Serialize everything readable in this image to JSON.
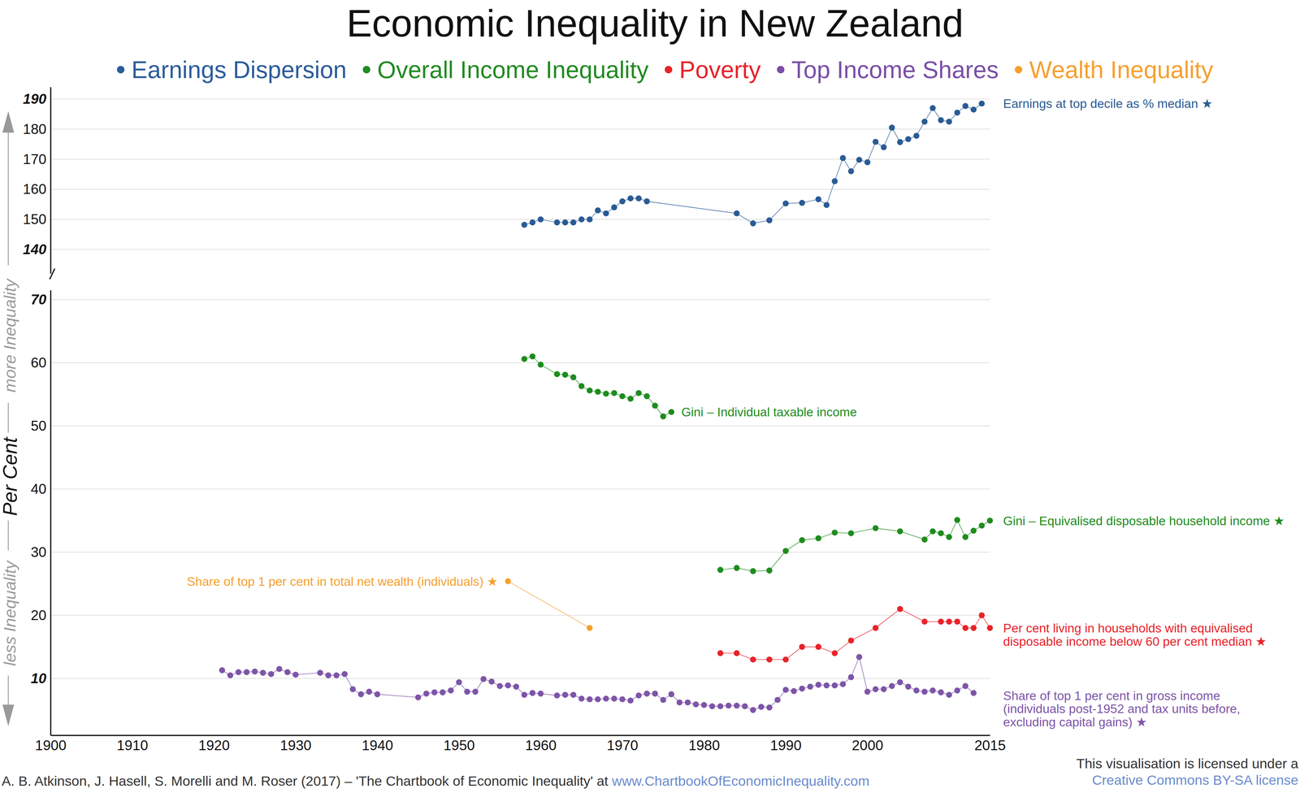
{
  "chart_data": {
    "type": "line",
    "title": "Economic Inequality in New Zealand",
    "legend_items": [
      {
        "label": "Earnings Dispersion",
        "color": "#2b5c9b"
      },
      {
        "label": "Overall Income Inequality",
        "color": "#218a21"
      },
      {
        "label": "Poverty",
        "color": "#e8232a"
      },
      {
        "label": "Top Income Shares",
        "color": "#7a4ea6"
      },
      {
        "label": "Wealth Inequality",
        "color": "#f5a030"
      }
    ],
    "y_label": "Per Cent",
    "axis_notes": {
      "high": "more Inequality",
      "low": "less Inequality"
    },
    "source": {
      "text": "A. B. Atkinson, J. Hasell, S. Morelli and M. Roser (2017) – 'The Chartbook of Economic Inequality' at ",
      "link": "www.ChartbookOfEconomicInequality.com"
    },
    "license": {
      "text": "This visualisation is licensed under a",
      "link": "Creative Commons BY-SA license"
    },
    "xlim": [
      1900,
      2015
    ],
    "xticks": [
      1900,
      1910,
      1920,
      1930,
      1940,
      1950,
      1960,
      1970,
      1980,
      1990,
      2000,
      2015
    ],
    "ylim": [
      1,
      71.5
    ],
    "yticks": [
      10,
      20,
      30,
      40,
      50,
      60,
      70
    ],
    "y2lim": [
      132,
      194
    ],
    "y2ticks": [
      140,
      150,
      160,
      170,
      180,
      190
    ],
    "grid": true,
    "marker": "circle",
    "line_style": "solid",
    "series": [
      {
        "name": "Earnings at top decile as % median ★",
        "color": "#2a5b94",
        "axis": "y2",
        "x": [
          1958,
          1959,
          1960,
          1962,
          1963,
          1964,
          1965,
          1966,
          1967,
          1968,
          1969,
          1970,
          1971,
          1972,
          1973,
          1984,
          1986,
          1988,
          1990,
          1992,
          1994,
          1995,
          1996,
          1997,
          1998,
          1999,
          2000,
          2001,
          2002,
          2003,
          2004,
          2005,
          2006,
          2007,
          2008,
          2009,
          2010,
          2011,
          2012,
          2013,
          2014
        ],
        "values": [
          148.2,
          149,
          150,
          149,
          149,
          149,
          150,
          150,
          153,
          152,
          154,
          156,
          157,
          157,
          156,
          152,
          148.7,
          149.7,
          155.3,
          155.5,
          156.7,
          154.8,
          162.7,
          170.4,
          166,
          169.8,
          169,
          175.8,
          174,
          180.5,
          175.7,
          176.7,
          177.8,
          182.5,
          187,
          183,
          182.5,
          185.5,
          187.7,
          186.5,
          188.5
        ]
      },
      {
        "name": "Gini – Individual taxable income",
        "color": "#1e8c1e",
        "x": [
          1958,
          1959,
          1960,
          1962,
          1963,
          1964,
          1965,
          1966,
          1967,
          1968,
          1969,
          1970,
          1971,
          1972,
          1973,
          1974,
          1975,
          1976
        ],
        "values": [
          60.6,
          61,
          59.7,
          58.2,
          58.1,
          57.7,
          56.3,
          55.6,
          55.4,
          55.1,
          55.2,
          54.7,
          54.3,
          55.2,
          54.7,
          53.2,
          51.5,
          52.2
        ]
      },
      {
        "name": "Gini – Equivalised disposable household income ★",
        "color": "#1e8c1e",
        "x": [
          1982,
          1984,
          1986,
          1988,
          1990,
          1992,
          1994,
          1996,
          1998,
          2001,
          2004,
          2007,
          2008,
          2009,
          2010,
          2011,
          2012,
          2013,
          2014,
          2015
        ],
        "values": [
          27.2,
          27.5,
          27,
          27.1,
          30.2,
          31.9,
          32.2,
          33.1,
          33,
          33.8,
          33.3,
          32,
          33.3,
          33,
          32.4,
          35.1,
          32.4,
          33.4,
          34.2,
          35
        ]
      },
      {
        "name": "Per cent living in households with equivalised\ndisposable income below 60 per cent median ★",
        "color": "#e8232a",
        "x": [
          1982,
          1984,
          1986,
          1988,
          1990,
          1992,
          1994,
          1996,
          1998,
          2001,
          2004,
          2007,
          2009,
          2010,
          2011,
          2012,
          2013,
          2014,
          2015
        ],
        "values": [
          14,
          14,
          13,
          13,
          13,
          15,
          15,
          14,
          16,
          18,
          21,
          19,
          19,
          19,
          19,
          18,
          18,
          20,
          18
        ]
      },
      {
        "name": "Share of top 1 per cent in gross income\n(individuals post-1952 and tax units before,\nexcluding capital gains) ★",
        "color": "#7d55a8",
        "x": [
          1921,
          1922,
          1923,
          1924,
          1925,
          1926,
          1927,
          1928,
          1929,
          1930,
          1933,
          1934,
          1935,
          1936,
          1937,
          1938,
          1939,
          1940,
          1945,
          1946,
          1947,
          1948,
          1949,
          1950,
          1951,
          1952,
          1953,
          1954,
          1955,
          1956,
          1957,
          1958,
          1959,
          1960,
          1962,
          1963,
          1964,
          1965,
          1966,
          1967,
          1968,
          1969,
          1970,
          1971,
          1972,
          1973,
          1974,
          1975,
          1976,
          1977,
          1978,
          1979,
          1980,
          1981,
          1982,
          1983,
          1984,
          1985,
          1986,
          1987,
          1988,
          1989,
          1990,
          1991,
          1992,
          1993,
          1994,
          1995,
          1996,
          1997,
          1998,
          1999,
          2000,
          2001,
          2002,
          2003,
          2004,
          2005,
          2006,
          2007,
          2008,
          2009,
          2010,
          2011,
          2012,
          2013
        ],
        "values": [
          11.3,
          10.5,
          11,
          11,
          11.1,
          10.9,
          10.7,
          11.5,
          11,
          10.6,
          10.9,
          10.5,
          10.5,
          10.7,
          8.3,
          7.5,
          7.9,
          7.5,
          7,
          7.6,
          7.8,
          7.8,
          8.1,
          9.4,
          7.9,
          7.9,
          9.9,
          9.5,
          8.8,
          8.9,
          8.7,
          7.4,
          7.7,
          7.6,
          7.3,
          7.4,
          7.4,
          6.8,
          6.7,
          6.7,
          6.8,
          6.8,
          6.7,
          6.5,
          7.3,
          7.6,
          7.6,
          6.6,
          7.5,
          6.2,
          6.2,
          5.9,
          5.8,
          5.6,
          5.6,
          5.7,
          5.7,
          5.6,
          5.0,
          5.5,
          5.4,
          6.6,
          8.2,
          8.0,
          8.4,
          8.7,
          9.0,
          8.9,
          8.9,
          9.1,
          10.2,
          13.4,
          7.9,
          8.3,
          8.3,
          8.8,
          9.4,
          8.7,
          8.1,
          7.9,
          8.1,
          7.8,
          7.4,
          8.1,
          8.8,
          7.7
        ]
      },
      {
        "name": "Share of top 1 per cent in total net wealth (individuals) ★",
        "color": "#f5a030",
        "x": [
          1956,
          1966
        ],
        "values": [
          25.4,
          18
        ]
      }
    ]
  }
}
